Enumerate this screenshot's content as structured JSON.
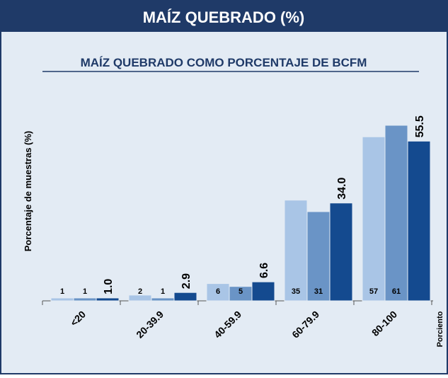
{
  "chart_data": {
    "type": "bar",
    "title": "MAÍZ QUEBRADO (%)",
    "subtitle": "MAÍZ QUEBRADO COMO PORCENTAJE DE BCFM",
    "y_label": "Porcentaje de muestras (%)",
    "x_label": "Porciento",
    "categories": [
      "<20",
      "20-39.9",
      "40-59.9",
      "60-79.9",
      "80-100"
    ],
    "series": [
      {
        "color": "#a9c5e6",
        "values": [
          1,
          2,
          6,
          35,
          57
        ]
      },
      {
        "color": "#6a94c6",
        "values": [
          1,
          1,
          5,
          31,
          61
        ]
      },
      {
        "color": "#144a8f",
        "values": [
          1.0,
          2.9,
          6.6,
          34.0,
          55.5
        ],
        "value_labels": [
          "1.0",
          "2.9",
          "6.6",
          "34.0",
          "55.5"
        ]
      }
    ]
  }
}
